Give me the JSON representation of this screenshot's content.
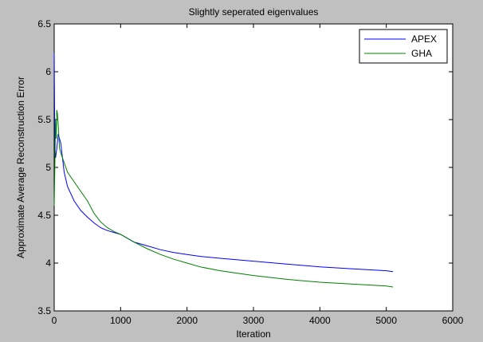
{
  "chart_data": {
    "type": "line",
    "title": "Slightly seperated eigenvalues",
    "xlabel": "Iteration",
    "ylabel": "Approximate Average Reconstruction Error",
    "xlim": [
      0,
      6000
    ],
    "ylim": [
      3.5,
      6.5
    ],
    "x_ticks": [
      0,
      1000,
      2000,
      3000,
      4000,
      5000,
      6000
    ],
    "x_tick_labels": [
      "0",
      "1000",
      "2000",
      "3000",
      "4000",
      "5000",
      "6000"
    ],
    "y_ticks": [
      3.5,
      4,
      4.5,
      5,
      5.5,
      6,
      6.5
    ],
    "y_tick_labels": [
      "3.5",
      "4",
      "4.5",
      "5",
      "5.5",
      "6",
      "6.5"
    ],
    "grid": false,
    "legend_position": "top-right",
    "series": [
      {
        "name": "APEX",
        "color": "#0000ff",
        "x": [
          0,
          10,
          20,
          40,
          60,
          80,
          100,
          150,
          200,
          300,
          400,
          500,
          600,
          700,
          800,
          900,
          1000,
          1200,
          1400,
          1600,
          1800,
          2000,
          2200,
          2500,
          3000,
          3500,
          4000,
          4500,
          5000,
          5100
        ],
        "y": [
          6.2,
          5.2,
          5.1,
          5.2,
          5.35,
          5.3,
          5.25,
          4.95,
          4.8,
          4.65,
          4.55,
          4.48,
          4.42,
          4.37,
          4.34,
          4.32,
          4.3,
          4.22,
          4.18,
          4.14,
          4.11,
          4.09,
          4.07,
          4.05,
          4.02,
          3.99,
          3.96,
          3.94,
          3.92,
          3.91
        ]
      },
      {
        "name": "GHA",
        "color": "#008000",
        "x": [
          0,
          10,
          20,
          30,
          40,
          50,
          60,
          80,
          100,
          150,
          200,
          300,
          400,
          500,
          600,
          700,
          800,
          900,
          1000,
          1200,
          1400,
          1600,
          1800,
          2000,
          2200,
          2500,
          3000,
          3500,
          4000,
          4500,
          5000,
          5100
        ],
        "y": [
          4.6,
          5.0,
          5.5,
          5.3,
          5.6,
          5.55,
          5.45,
          5.2,
          5.15,
          5.05,
          4.95,
          4.85,
          4.75,
          4.65,
          4.52,
          4.43,
          4.37,
          4.33,
          4.3,
          4.22,
          4.15,
          4.09,
          4.04,
          4.0,
          3.96,
          3.92,
          3.87,
          3.83,
          3.8,
          3.78,
          3.76,
          3.75
        ]
      }
    ]
  }
}
